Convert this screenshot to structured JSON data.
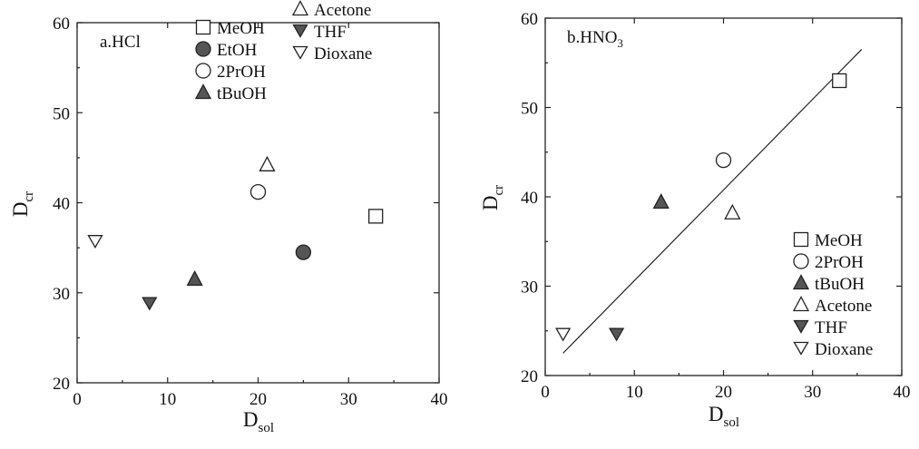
{
  "chart_data": [
    {
      "type": "scatter",
      "title": "a.HCl",
      "title_main": "a.HCl",
      "title_sub": "",
      "xlabel_main": "D",
      "xlabel_sub": "sol",
      "ylabel_main": "D",
      "ylabel_sub": "cr",
      "xlim": [
        0,
        40
      ],
      "ylim": [
        20,
        60
      ],
      "xticks": [
        0,
        10,
        20,
        30,
        40
      ],
      "yticks": [
        20,
        30,
        40,
        50,
        60
      ],
      "grid": false,
      "legend_position": "top",
      "legend_columns": 2,
      "series": [
        {
          "name": "MeOH",
          "marker": "square-open",
          "points": [
            [
              33,
              38.5
            ]
          ]
        },
        {
          "name": "EtOH",
          "marker": "circle-filled",
          "points": [
            [
              25,
              34.5
            ]
          ]
        },
        {
          "name": "2PrOH",
          "marker": "circle-open",
          "points": [
            [
              20,
              41.2
            ]
          ]
        },
        {
          "name": "tBuOH",
          "marker": "triangle-up-filled",
          "points": [
            [
              13,
              31.5
            ]
          ]
        },
        {
          "name": "Acetone",
          "marker": "triangle-up-open",
          "points": [
            [
              21,
              44.2
            ]
          ]
        },
        {
          "name": "THF",
          "marker": "triangle-down-filled",
          "points": [
            [
              8,
              28.8
            ]
          ]
        },
        {
          "name": "Dioxane",
          "marker": "triangle-down-open",
          "points": [
            [
              2,
              35.7
            ]
          ]
        }
      ],
      "fit_line": null
    },
    {
      "type": "scatter",
      "title": "b.HNO3",
      "title_main": "b.HNO",
      "title_sub": "3",
      "xlabel_main": "D",
      "xlabel_sub": "sol",
      "ylabel_main": "D",
      "ylabel_sub": "cr",
      "xlim": [
        0,
        40
      ],
      "ylim": [
        20,
        60
      ],
      "xticks": [
        0,
        10,
        20,
        30,
        40
      ],
      "yticks": [
        20,
        30,
        40,
        50,
        60
      ],
      "grid": false,
      "legend_position": "lower-right",
      "legend_columns": 1,
      "series": [
        {
          "name": "MeOH",
          "marker": "square-open",
          "points": [
            [
              33,
              53
            ]
          ]
        },
        {
          "name": "2PrOH",
          "marker": "circle-open",
          "points": [
            [
              20,
              44.1
            ]
          ]
        },
        {
          "name": "tBuOH",
          "marker": "triangle-up-filled",
          "points": [
            [
              13,
              39.4
            ]
          ]
        },
        {
          "name": "Acetone",
          "marker": "triangle-up-open",
          "points": [
            [
              21,
              38.2
            ]
          ]
        },
        {
          "name": "THF",
          "marker": "triangle-down-filled",
          "points": [
            [
              8,
              24.6
            ]
          ]
        },
        {
          "name": "Dioxane",
          "marker": "triangle-down-open",
          "points": [
            [
              2,
              24.6
            ]
          ]
        }
      ],
      "fit_line": {
        "x": [
          2,
          35.5
        ],
        "y": [
          22.5,
          56.5
        ]
      }
    }
  ]
}
